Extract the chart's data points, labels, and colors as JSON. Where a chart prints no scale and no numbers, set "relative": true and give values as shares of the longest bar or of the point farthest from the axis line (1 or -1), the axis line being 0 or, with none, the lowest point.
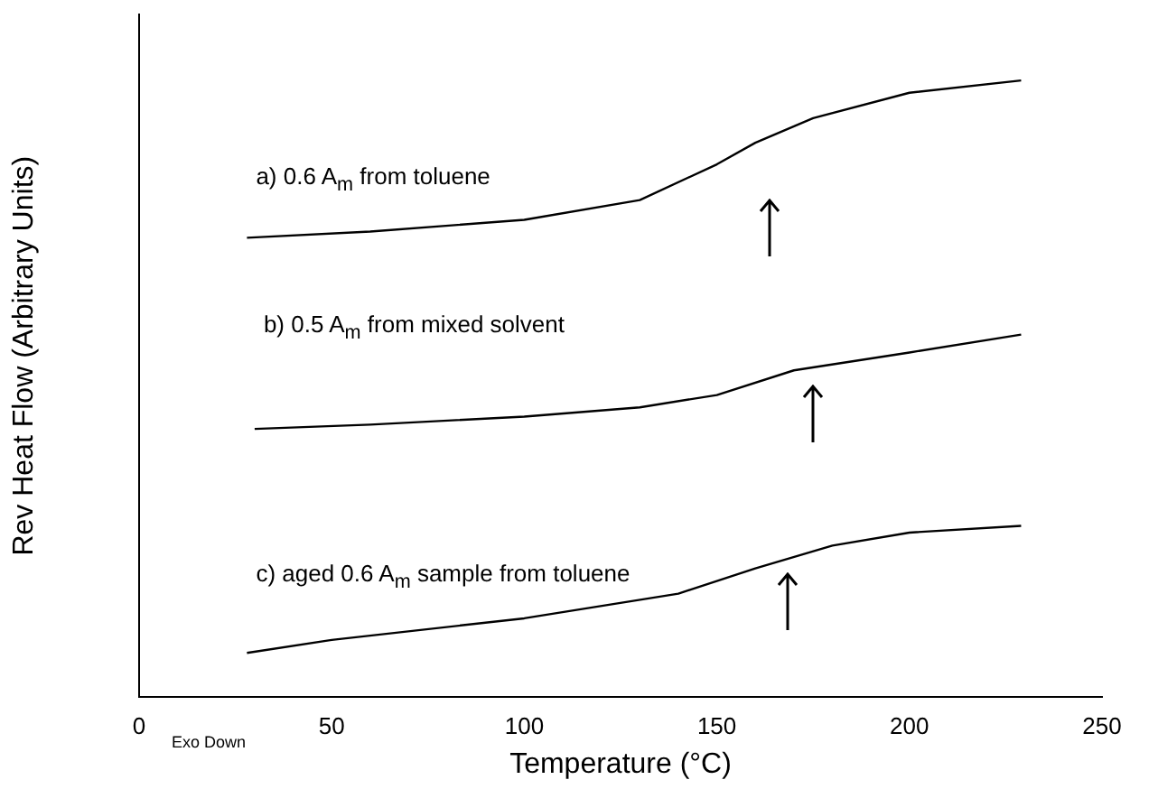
{
  "chart_data": {
    "type": "line",
    "relative": true,
    "xlabel": "Temperature (°C)",
    "ylabel": "Rev Heat Flow (Arbitrary Units)",
    "xlim": [
      0,
      250
    ],
    "xticks": [
      0,
      50,
      100,
      150,
      200,
      250
    ],
    "grid": false,
    "legend": false,
    "marker": "none",
    "line_style": "solid",
    "annotations": [
      "Exo Down"
    ],
    "series": [
      {
        "name": "a) 0.6 A$_{m}$ from toluene",
        "color": "#000000",
        "x": [
          28,
          60,
          100,
          130,
          150,
          160,
          175,
          200,
          229
        ],
        "values": [
          0.745,
          0.755,
          0.774,
          0.806,
          0.864,
          0.899,
          0.939,
          0.98,
          1
        ]
      },
      {
        "name": "b) 0.5 A$_{m}$ from mixed solvent",
        "color": "#000000",
        "x": [
          30,
          60,
          100,
          130,
          150,
          170,
          200,
          229
        ],
        "values": [
          0.435,
          0.442,
          0.455,
          0.47,
          0.49,
          0.53,
          0.559,
          0.588
        ]
      },
      {
        "name": "c) aged 0.6 A$_{m}$ sample from toluene",
        "color": "#000000",
        "x": [
          28,
          50,
          100,
          140,
          160,
          180,
          200,
          229
        ],
        "values": [
          0.072,
          0.093,
          0.128,
          0.168,
          0.209,
          0.246,
          0.267,
          0.278
        ]
      }
    ]
  }
}
